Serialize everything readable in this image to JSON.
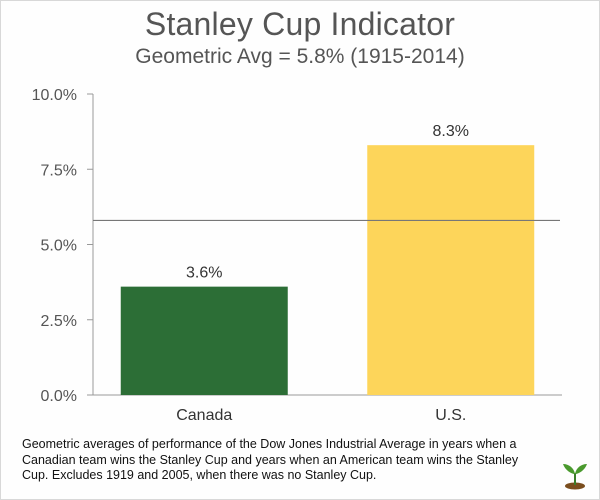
{
  "chart_data": {
    "type": "bar",
    "title": "Stanley Cup Indicator",
    "subtitle": "Geometric Avg = 5.8% (1915-2014)",
    "categories": [
      "Canada",
      "U.S."
    ],
    "values": [
      3.6,
      8.3
    ],
    "data_labels": [
      "3.6%",
      "8.3%"
    ],
    "bar_colors": [
      "#2c6e36",
      "#fdd55a"
    ],
    "ylim": [
      0,
      10
    ],
    "yticks": [
      0,
      2.5,
      5,
      7.5,
      10
    ],
    "ytick_labels": [
      "0.0%",
      "2.5%",
      "5.0%",
      "7.5%",
      "10.0%"
    ],
    "reference_line": {
      "value": 5.8,
      "color": "#777777"
    },
    "grid": false,
    "legend": "none"
  },
  "footnote": "Geometric averages of performance of the Dow Jones Industrial Average in years when a Canadian team wins the Stanley Cup and years when an American team wins the Stanley Cup. Excludes 1919 and 2005, when there was no Stanley Cup.",
  "icons": {
    "logo": "sprout-icon"
  },
  "colors": {
    "text": "#555555",
    "axis": "#999999"
  }
}
